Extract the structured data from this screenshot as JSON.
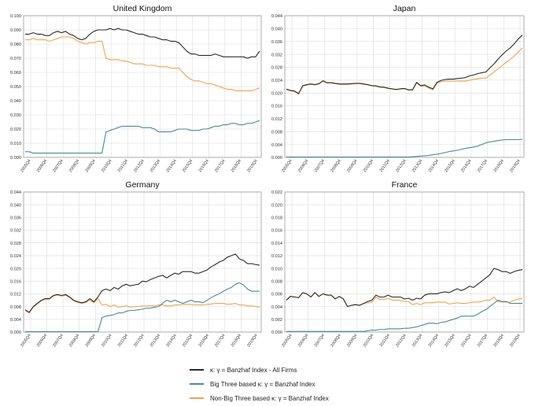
{
  "chart_data": [
    {
      "type": "line",
      "title": "United Kingdom",
      "ylim": [
        0,
        0.1
      ],
      "yticks": [
        "0.000",
        "0.010",
        "0.020",
        "0.030",
        "0.040",
        "0.050",
        "0.060",
        "0.070",
        "0.080",
        "0.090",
        "0.100"
      ],
      "xticks": [
        "2005Q4",
        "2006Q4",
        "2007Q4",
        "2008Q4",
        "2009Q4",
        "2010Q4",
        "2011Q4",
        "2012Q4",
        "2013Q4",
        "2014Q4",
        "2015Q4",
        "2016Q4",
        "2017Q4",
        "2018Q4",
        "2019Q4"
      ],
      "series": [
        {
          "name": "all_firms",
          "values": [
            0.087,
            0.087,
            0.088,
            0.087,
            0.087,
            0.086,
            0.086,
            0.088,
            0.089,
            0.088,
            0.089,
            0.087,
            0.086,
            0.084,
            0.083,
            0.084,
            0.087,
            0.089,
            0.09,
            0.09,
            0.09,
            0.091,
            0.09,
            0.091,
            0.09,
            0.09,
            0.089,
            0.088,
            0.087,
            0.087,
            0.086,
            0.085,
            0.085,
            0.084,
            0.083,
            0.083,
            0.082,
            0.082,
            0.081,
            0.078,
            0.075,
            0.073,
            0.073,
            0.072,
            0.072,
            0.072,
            0.072,
            0.073,
            0.072,
            0.071,
            0.071,
            0.071,
            0.071,
            0.071,
            0.071,
            0.07,
            0.071,
            0.071,
            0.075
          ]
        },
        {
          "name": "big_three",
          "values": [
            0.004,
            0.004,
            0.003,
            0.003,
            0.003,
            0.003,
            0.003,
            0.003,
            0.003,
            0.003,
            0.003,
            0.003,
            0.003,
            0.003,
            0.003,
            0.003,
            0.003,
            0.003,
            0.003,
            0.003,
            0.018,
            0.019,
            0.02,
            0.021,
            0.022,
            0.022,
            0.022,
            0.022,
            0.022,
            0.021,
            0.021,
            0.021,
            0.02,
            0.018,
            0.018,
            0.018,
            0.018,
            0.019,
            0.02,
            0.02,
            0.02,
            0.019,
            0.019,
            0.019,
            0.02,
            0.02,
            0.021,
            0.022,
            0.022,
            0.023,
            0.023,
            0.024,
            0.024,
            0.023,
            0.023,
            0.024,
            0.024,
            0.025,
            0.026
          ]
        },
        {
          "name": "non_big_three",
          "values": [
            0.083,
            0.083,
            0.084,
            0.083,
            0.083,
            0.083,
            0.082,
            0.083,
            0.084,
            0.085,
            0.085,
            0.085,
            0.084,
            0.082,
            0.081,
            0.08,
            0.081,
            0.081,
            0.082,
            0.082,
            0.07,
            0.069,
            0.069,
            0.069,
            0.068,
            0.068,
            0.067,
            0.066,
            0.066,
            0.066,
            0.065,
            0.065,
            0.065,
            0.064,
            0.064,
            0.064,
            0.063,
            0.063,
            0.063,
            0.06,
            0.057,
            0.055,
            0.054,
            0.054,
            0.053,
            0.052,
            0.052,
            0.051,
            0.05,
            0.049,
            0.048,
            0.048,
            0.047,
            0.047,
            0.047,
            0.047,
            0.047,
            0.048,
            0.049
          ]
        }
      ]
    },
    {
      "type": "line",
      "title": "Japan",
      "ylim": [
        0,
        0.044
      ],
      "yticks": [
        "0.000",
        "0.004",
        "0.008",
        "0.012",
        "0.016",
        "0.020",
        "0.024",
        "0.028",
        "0.032",
        "0.036",
        "0.040",
        "0.044"
      ],
      "xticks": [
        "2005Q4",
        "2006Q4",
        "2007Q4",
        "2008Q4",
        "2009Q4",
        "2010Q4",
        "2011Q4",
        "2012Q4",
        "2013Q4",
        "2014Q4",
        "2015Q4",
        "2016Q4",
        "2017Q4",
        "2018Q4",
        "2019Q4"
      ],
      "series": [
        {
          "name": "all_firms",
          "values": [
            0.0212,
            0.0208,
            0.0206,
            0.0198,
            0.0222,
            0.0226,
            0.0228,
            0.0226,
            0.0229,
            0.0238,
            0.0232,
            0.0232,
            0.023,
            0.0228,
            0.0228,
            0.0228,
            0.0229,
            0.023,
            0.023,
            0.0228,
            0.0226,
            0.0223,
            0.0222,
            0.0219,
            0.0218,
            0.0215,
            0.0213,
            0.0211,
            0.0213,
            0.0214,
            0.021,
            0.021,
            0.0233,
            0.0223,
            0.0225,
            0.0218,
            0.0213,
            0.0233,
            0.0239,
            0.0242,
            0.0243,
            0.0243,
            0.0245,
            0.0246,
            0.0248,
            0.0253,
            0.0256,
            0.026,
            0.0263,
            0.0265,
            0.0278,
            0.029,
            0.0305,
            0.0318,
            0.033,
            0.034,
            0.0353,
            0.0368,
            0.038
          ]
        },
        {
          "name": "big_three",
          "values": [
            0.0001,
            0.0001,
            0.0001,
            0.0001,
            0.0001,
            0.0001,
            0.0001,
            0.0001,
            0.0001,
            0.0001,
            0.0001,
            0.0001,
            0.0001,
            0.0001,
            0.0001,
            0.0001,
            0.0001,
            0.0001,
            0.0001,
            0.0001,
            0.0001,
            0.0001,
            0.0001,
            0.0001,
            0.0001,
            0.0001,
            0.0001,
            0.0001,
            0.0001,
            0.0001,
            0.0001,
            0.0002,
            0.0003,
            0.0004,
            0.0005,
            0.0006,
            0.0008,
            0.001,
            0.0012,
            0.0015,
            0.0018,
            0.002,
            0.0022,
            0.0025,
            0.0028,
            0.003,
            0.0032,
            0.0035,
            0.004,
            0.0045,
            0.0048,
            0.005,
            0.0052,
            0.0054,
            0.0055,
            0.0055,
            0.0055,
            0.0055,
            0.0056
          ]
        },
        {
          "name": "non_big_three",
          "values": [
            0.021,
            0.0207,
            0.0205,
            0.0197,
            0.0221,
            0.0225,
            0.0227,
            0.0225,
            0.0228,
            0.0237,
            0.0231,
            0.0231,
            0.0229,
            0.0227,
            0.0227,
            0.0227,
            0.0228,
            0.0229,
            0.0229,
            0.0227,
            0.0225,
            0.0222,
            0.0221,
            0.0218,
            0.0217,
            0.0214,
            0.0212,
            0.021,
            0.0212,
            0.0213,
            0.0209,
            0.0209,
            0.0231,
            0.0221,
            0.0222,
            0.0215,
            0.021,
            0.023,
            0.0235,
            0.0237,
            0.0237,
            0.0237,
            0.0237,
            0.0237,
            0.0237,
            0.024,
            0.0242,
            0.0244,
            0.0246,
            0.0246,
            0.0255,
            0.0265,
            0.0275,
            0.0285,
            0.0295,
            0.0305,
            0.0315,
            0.0328,
            0.034
          ]
        }
      ]
    },
    {
      "type": "line",
      "title": "Germany",
      "ylim": [
        0,
        0.044
      ],
      "yticks": [
        "0.000",
        "0.004",
        "0.008",
        "0.012",
        "0.016",
        "0.020",
        "0.024",
        "0.028",
        "0.032",
        "0.036",
        "0.040",
        "0.044"
      ],
      "xticks": [
        "2005Q4",
        "2006Q4",
        "2007Q4",
        "2008Q4",
        "2009Q4",
        "2010Q4",
        "2011Q4",
        "2012Q4",
        "2013Q4",
        "2014Q4",
        "2015Q4",
        "2016Q4",
        "2017Q4",
        "2018Q4",
        "2019Q4"
      ],
      "series": [
        {
          "name": "all_firms",
          "values": [
            0.007,
            0.0062,
            0.008,
            0.009,
            0.01,
            0.0105,
            0.0105,
            0.0115,
            0.0118,
            0.0115,
            0.0118,
            0.011,
            0.01,
            0.0095,
            0.0092,
            0.0095,
            0.0105,
            0.0095,
            0.011,
            0.013,
            0.0135,
            0.013,
            0.014,
            0.0135,
            0.0145,
            0.015,
            0.0145,
            0.0148,
            0.015,
            0.016,
            0.0158,
            0.0165,
            0.017,
            0.0175,
            0.0178,
            0.017,
            0.0178,
            0.0185,
            0.0182,
            0.019,
            0.019,
            0.019,
            0.0185,
            0.0185,
            0.019,
            0.0195,
            0.0205,
            0.0212,
            0.022,
            0.0225,
            0.0235,
            0.024,
            0.0245,
            0.023,
            0.0225,
            0.0215,
            0.0215,
            0.0212,
            0.021
          ]
        },
        {
          "name": "big_three",
          "values": [
            0.0001,
            0.0001,
            0.0001,
            0.0001,
            0.0001,
            0.0001,
            0.0001,
            0.0001,
            0.0001,
            0.0001,
            0.0001,
            0.0001,
            0.0001,
            0.0001,
            0.0001,
            0.0001,
            0.0001,
            0.0001,
            0.0001,
            0.0045,
            0.005,
            0.0052,
            0.0055,
            0.006,
            0.006,
            0.0065,
            0.0068,
            0.0068,
            0.007,
            0.0072,
            0.0075,
            0.0075,
            0.0078,
            0.008,
            0.009,
            0.01,
            0.0095,
            0.01,
            0.0095,
            0.009,
            0.0095,
            0.01,
            0.0095,
            0.0095,
            0.0092,
            0.01,
            0.0108,
            0.0115,
            0.012,
            0.0128,
            0.0135,
            0.014,
            0.015,
            0.0155,
            0.0148,
            0.0135,
            0.0128,
            0.0128,
            0.0128
          ]
        },
        {
          "name": "non_big_three",
          "values": [
            0.0068,
            0.006,
            0.0078,
            0.0088,
            0.0098,
            0.0103,
            0.0103,
            0.0113,
            0.0116,
            0.0113,
            0.0116,
            0.0108,
            0.0098,
            0.0093,
            0.009,
            0.0093,
            0.01,
            0.0092,
            0.0105,
            0.0085,
            0.0087,
            0.008,
            0.0085,
            0.0078,
            0.008,
            0.0082,
            0.0078,
            0.008,
            0.008,
            0.0082,
            0.0082,
            0.0082,
            0.0082,
            0.0085,
            0.0085,
            0.0082,
            0.0082,
            0.0085,
            0.0085,
            0.0087,
            0.0087,
            0.0087,
            0.0085,
            0.0085,
            0.0085,
            0.0087,
            0.0088,
            0.009,
            0.009,
            0.009,
            0.0087,
            0.0088,
            0.009,
            0.0085,
            0.0085,
            0.0082,
            0.0082,
            0.008,
            0.0078
          ]
        }
      ]
    },
    {
      "type": "line",
      "title": "France",
      "ylim": [
        0,
        0.022
      ],
      "yticks": [
        "0.000",
        "0.002",
        "0.004",
        "0.006",
        "0.008",
        "0.010",
        "0.012",
        "0.014",
        "0.016",
        "0.018",
        "0.020",
        "0.022"
      ],
      "xticks": [
        "2005Q4",
        "2006Q4",
        "2007Q4",
        "2008Q4",
        "2009Q4",
        "2010Q4",
        "2011Q4",
        "2012Q4",
        "2013Q4",
        "2014Q4",
        "2015Q4",
        "2016Q4",
        "2017Q4",
        "2018Q4",
        "2019Q4"
      ],
      "series": [
        {
          "name": "all_firms",
          "values": [
            0.005,
            0.0056,
            0.0055,
            0.0054,
            0.0062,
            0.006,
            0.0055,
            0.0062,
            0.0056,
            0.006,
            0.0058,
            0.0058,
            0.0052,
            0.0056,
            0.0052,
            0.004,
            0.0042,
            0.0043,
            0.0042,
            0.0045,
            0.0048,
            0.005,
            0.0058,
            0.0055,
            0.0055,
            0.0058,
            0.0055,
            0.0055,
            0.0055,
            0.0052,
            0.0053,
            0.005,
            0.0053,
            0.0052,
            0.0058,
            0.006,
            0.006,
            0.006,
            0.0062,
            0.0063,
            0.0062,
            0.0065,
            0.0068,
            0.0065,
            0.0068,
            0.0072,
            0.007,
            0.0075,
            0.008,
            0.0085,
            0.009,
            0.01,
            0.0098,
            0.0095,
            0.0095,
            0.0092,
            0.0095,
            0.0097,
            0.0098
          ]
        },
        {
          "name": "big_three",
          "values": [
            0.0001,
            0.0001,
            0.0001,
            0.0001,
            0.0001,
            0.0001,
            0.0001,
            0.0001,
            0.0001,
            0.0001,
            0.0001,
            0.0001,
            0.0001,
            0.0001,
            0.0001,
            0.0001,
            0.0001,
            0.0001,
            0.0001,
            0.0001,
            0.0002,
            0.0003,
            0.0003,
            0.0004,
            0.0004,
            0.0005,
            0.0005,
            0.0005,
            0.0005,
            0.0006,
            0.0006,
            0.0007,
            0.0008,
            0.001,
            0.0012,
            0.0014,
            0.0014,
            0.0013,
            0.0015,
            0.0016,
            0.0018,
            0.002,
            0.0022,
            0.0025,
            0.0025,
            0.0025,
            0.0025,
            0.0028,
            0.0032,
            0.0035,
            0.004,
            0.0045,
            0.005,
            0.0048,
            0.0048,
            0.0045,
            0.0045,
            0.0045,
            0.0045
          ]
        },
        {
          "name": "non_big_three",
          "values": [
            0.005,
            0.0056,
            0.0055,
            0.0054,
            0.0062,
            0.006,
            0.0055,
            0.0062,
            0.0056,
            0.006,
            0.0058,
            0.0058,
            0.0052,
            0.0056,
            0.0052,
            0.004,
            0.0042,
            0.0043,
            0.0042,
            0.0045,
            0.0046,
            0.0047,
            0.0055,
            0.0051,
            0.0051,
            0.0053,
            0.005,
            0.005,
            0.005,
            0.0048,
            0.0048,
            0.0043,
            0.0045,
            0.0043,
            0.0046,
            0.0046,
            0.0046,
            0.0047,
            0.0047,
            0.0047,
            0.0044,
            0.0045,
            0.0046,
            0.0045,
            0.0045,
            0.0046,
            0.0047,
            0.0047,
            0.0048,
            0.005,
            0.005,
            0.0055,
            0.0048,
            0.0047,
            0.0047,
            0.0047,
            0.005,
            0.0052,
            0.0053
          ]
        }
      ]
    }
  ],
  "legend": [
    {
      "key": "all_firms",
      "label": "κ: γ = Banzhaf Index - All Firms",
      "color": "#2b2b2b"
    },
    {
      "key": "big_three",
      "label": "Big Three based κ: γ = Banzhaf Index",
      "color": "#4a8c94"
    },
    {
      "key": "non_big_three",
      "label": "Non-Big Three based κ: γ = Banzhaf Index",
      "color": "#f0a44c"
    }
  ]
}
